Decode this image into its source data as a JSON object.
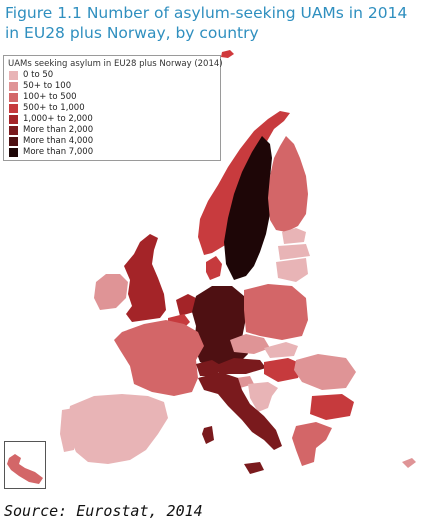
{
  "title": "Figure 1.1 Number of asylum-seeking UAMs in 2014 in EU28 plus Norway, by country",
  "legend": {
    "title": "UAMs seeking asylum in EU28 plus Norway (2014)",
    "items": [
      {
        "label": "0 to 50",
        "color": "#e8b4b6"
      },
      {
        "label": "50+ to 100",
        "color": "#df9496"
      },
      {
        "label": "100+ to 500",
        "color": "#d36668"
      },
      {
        "label": "500+ to 1,000",
        "color": "#c63a3d"
      },
      {
        "label": "1,000+ to 2,000",
        "color": "#a42428"
      },
      {
        "label": "More than 2,000",
        "color": "#7a1a1d"
      },
      {
        "label": "More than 4,000",
        "color": "#4e1012"
      },
      {
        "label": "More than 7,000",
        "color": "#1e0607"
      }
    ]
  },
  "source": "Source: Eurostat, 2014"
}
